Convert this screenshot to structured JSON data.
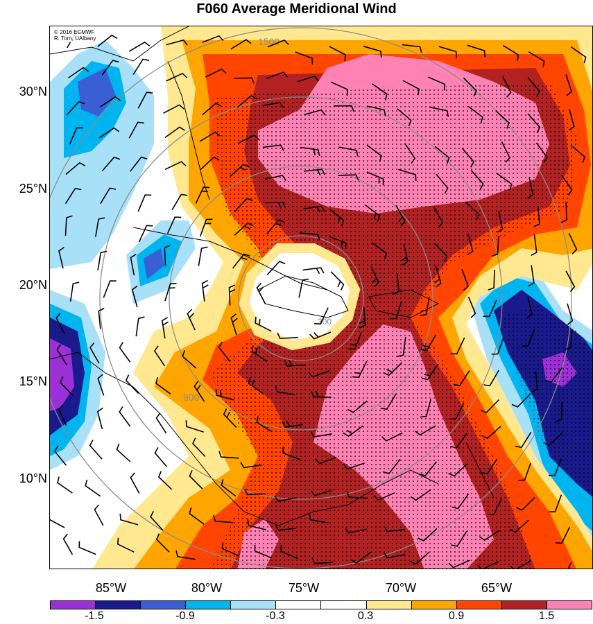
{
  "title": "F060 Average Meridional Wind",
  "credit": [
    "© 2016 ECMWF",
    "R. Torn, UAlbany"
  ],
  "lat_labels": [
    "30°N",
    "25°N",
    "20°N",
    "15°N",
    "10°N"
  ],
  "lon_labels": [
    "85°W",
    "80°W",
    "75°W",
    "70°W",
    "65°W"
  ],
  "colorbar": {
    "colors": [
      "#9b30d6",
      "#1a1a8c",
      "#3a5fd4",
      "#00b4f0",
      "#a8e0f8",
      "#ffffff",
      "#ffffff",
      "#ffe890",
      "#ffa500",
      "#ff4500",
      "#b22222",
      "#ff82b4"
    ],
    "labels": [
      "-1.5",
      "-0.9",
      "-0.3",
      "0.3",
      "0.9",
      "1.5"
    ]
  },
  "range_ring_labels": [
    "1500",
    "900",
    "300"
  ]
}
